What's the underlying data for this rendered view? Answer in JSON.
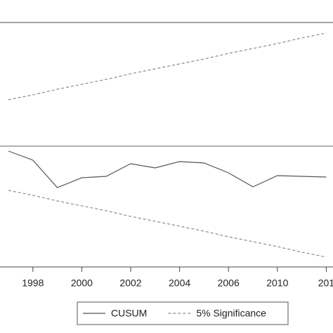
{
  "chart_data": {
    "type": "line",
    "categories": [
      null,
      "1998",
      null,
      "2000",
      null,
      "2002",
      null,
      "2004",
      null,
      "2006",
      null,
      "2010",
      null,
      "201"
    ],
    "series": [
      {
        "name": "CUSUM",
        "color": "#555555",
        "dash": false,
        "values": [
          -0.7,
          -2,
          -5.9,
          -4.5,
          -4.3,
          -2.5,
          -3.1,
          -2.2,
          -2.4,
          -3.8,
          -5.8,
          -4.2,
          -4.3,
          -4.4
        ]
      },
      {
        "name": "5% Significance",
        "color": "#8a8a8a",
        "dash": true,
        "values": [
          6.6,
          7.3,
          8.1,
          8.8,
          9.5,
          10.3,
          11.0,
          11.7,
          12.4,
          13.2,
          13.9,
          14.6,
          15.4,
          16.1
        ]
      },
      {
        "name": null,
        "color": "#8a8a8a",
        "dash": true,
        "values": [
          -6.3,
          -7.0,
          -7.8,
          -8.5,
          -9.2,
          -10.0,
          -10.7,
          -11.4,
          -12.1,
          -12.9,
          -13.6,
          -14.3,
          -15.1,
          -15.8
        ]
      }
    ],
    "ylim": [
      -17.2,
      17.6
    ]
  }
}
